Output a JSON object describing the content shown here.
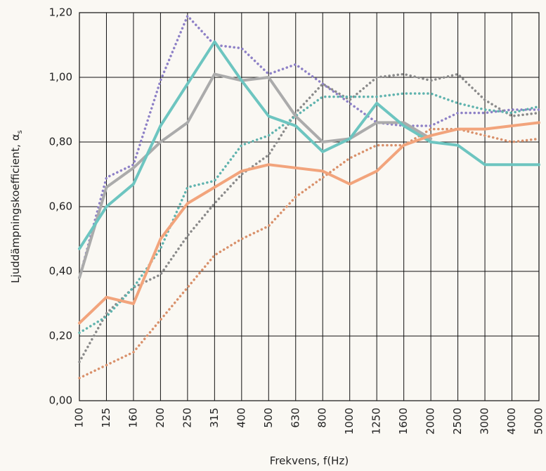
{
  "chart_data": {
    "type": "line",
    "x_label": "Frekvens, f(Hz)",
    "y_label": "Ljuddämpningskoefficient, α",
    "y_label_subscript": "s",
    "categories": [
      "100",
      "125",
      "160",
      "200",
      "250",
      "315",
      "400",
      "500",
      "630",
      "800",
      "1000",
      "1250",
      "1600",
      "2000",
      "2500",
      "3000",
      "4000",
      "5000"
    ],
    "ylim": [
      0,
      1.2
    ],
    "yticks": [
      {
        "value": 0,
        "label": "0,00"
      },
      {
        "value": 0.2,
        "label": "0,20"
      },
      {
        "value": 0.4,
        "label": "0,40"
      },
      {
        "value": 0.6,
        "label": "0,60"
      },
      {
        "value": 0.8,
        "label": "0,80"
      },
      {
        "value": 1.0,
        "label": "1,00"
      },
      {
        "value": 1.2,
        "label": "1,20"
      }
    ],
    "grid": true,
    "series": [
      {
        "color": "#8d80c6",
        "style": "dotted",
        "values": [
          0.38,
          0.69,
          0.73,
          0.99,
          1.19,
          1.1,
          1.09,
          1.01,
          1.04,
          0.98,
          0.92,
          0.86,
          0.85,
          0.85,
          0.89,
          0.89,
          0.9,
          0.9
        ]
      },
      {
        "color": "#8a8a8a",
        "style": "dotted",
        "values": [
          0.12,
          0.27,
          0.35,
          0.39,
          0.51,
          0.61,
          0.7,
          0.76,
          0.89,
          0.98,
          0.93,
          1.0,
          1.01,
          0.99,
          1.01,
          0.93,
          0.88,
          0.89
        ]
      },
      {
        "color": "#5fb3ae",
        "style": "dotted",
        "values": [
          0.21,
          0.26,
          0.35,
          0.47,
          0.66,
          0.68,
          0.79,
          0.82,
          0.88,
          0.94,
          0.94,
          0.94,
          0.95,
          0.95,
          0.92,
          0.9,
          0.89,
          0.91
        ]
      },
      {
        "color": "#d9906a",
        "style": "dotted",
        "values": [
          0.07,
          0.11,
          0.15,
          0.25,
          0.35,
          0.45,
          0.5,
          0.54,
          0.63,
          0.69,
          0.75,
          0.79,
          0.79,
          0.84,
          0.84,
          0.82,
          0.8,
          0.81
        ]
      },
      {
        "color": "#ababab",
        "style": "solid",
        "values": [
          0.38,
          0.66,
          0.72,
          0.8,
          0.86,
          1.01,
          0.99,
          1.0,
          0.88,
          0.8,
          0.81,
          0.86,
          0.86,
          0.81,
          null,
          null,
          null,
          null
        ]
      },
      {
        "color": "#6dc5c0",
        "style": "solid",
        "values": [
          0.47,
          0.6,
          0.67,
          0.85,
          0.98,
          1.11,
          0.99,
          0.88,
          0.85,
          0.77,
          0.81,
          0.92,
          0.85,
          0.8,
          0.79,
          0.73,
          0.73,
          0.73
        ]
      },
      {
        "color": "#f2a47c",
        "style": "solid",
        "values": [
          0.24,
          0.32,
          0.3,
          0.5,
          0.61,
          0.66,
          0.71,
          0.73,
          0.72,
          0.71,
          0.67,
          0.71,
          0.79,
          0.82,
          0.84,
          0.84,
          0.85,
          0.86
        ]
      }
    ]
  }
}
